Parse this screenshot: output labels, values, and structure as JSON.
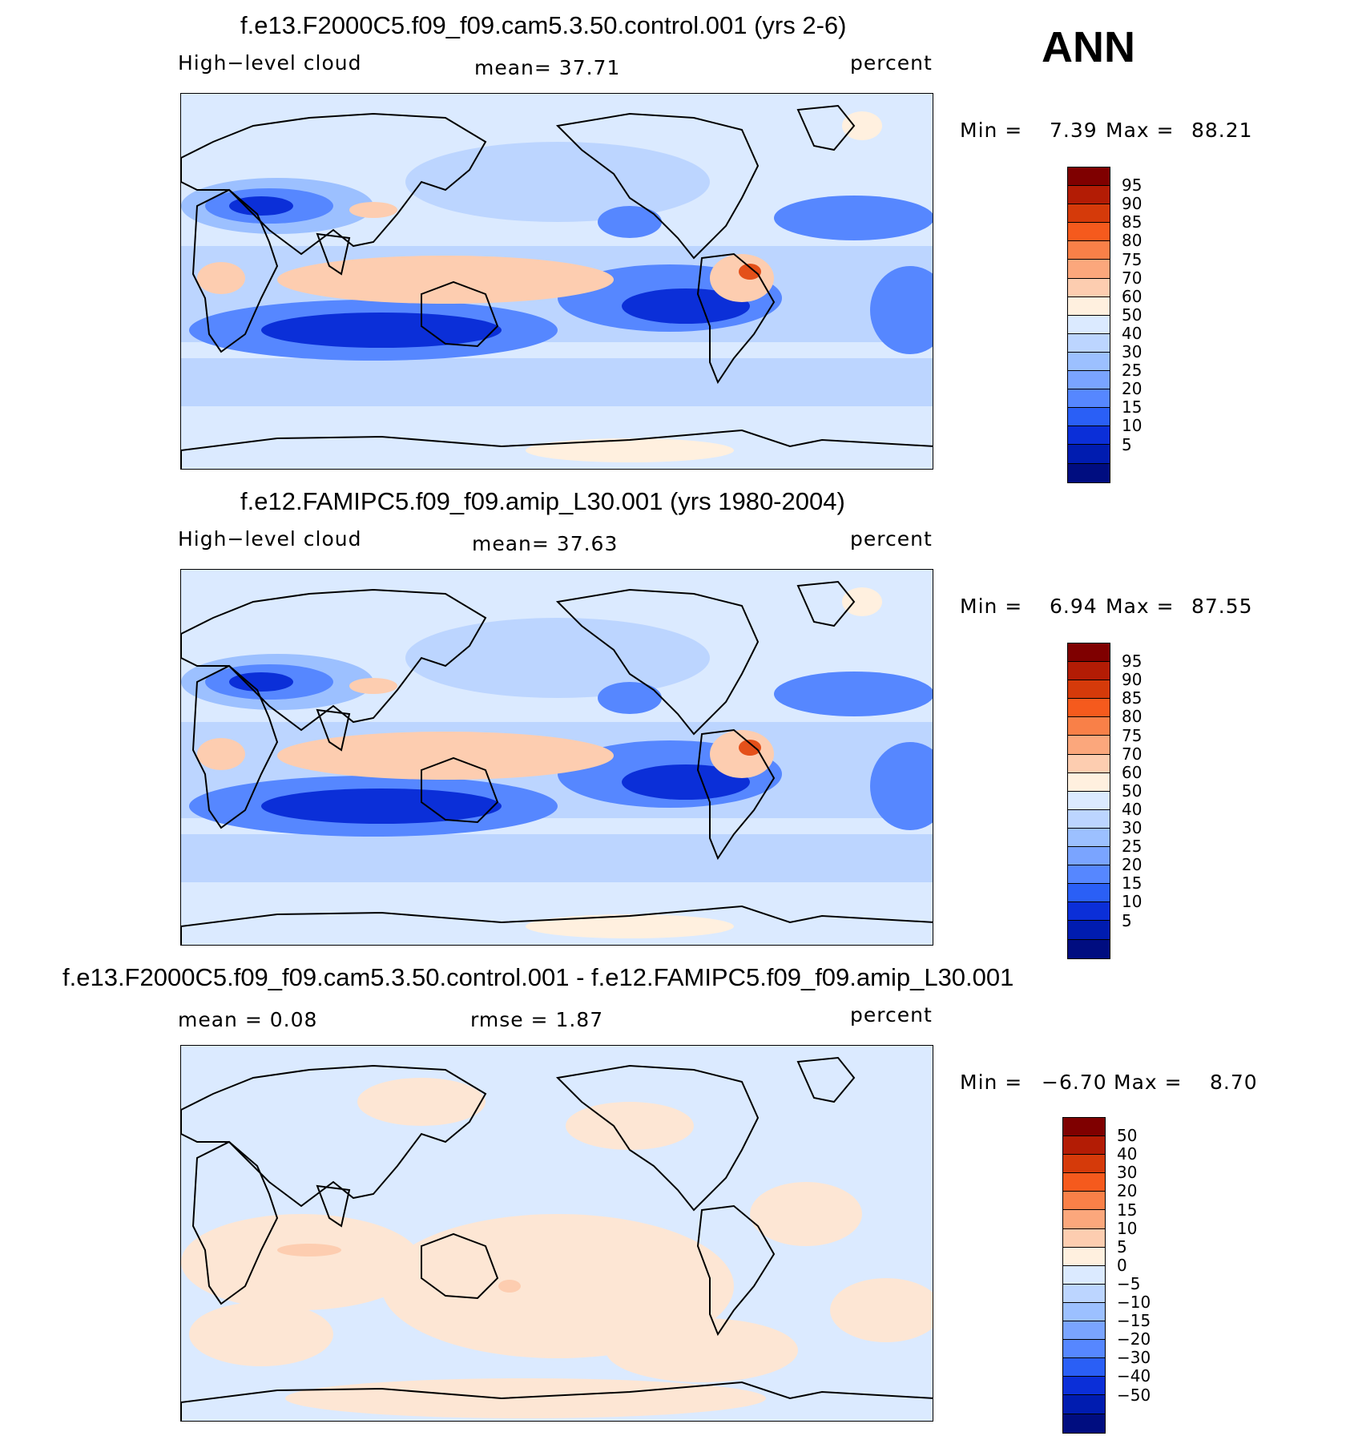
{
  "season": "ANN",
  "panels": [
    {
      "id": "top",
      "title": "f.e13.F2000C5.f09_f09.cam5.3.50.control.001 (yrs 2-6)",
      "left_label": "High−level cloud",
      "center_label": "mean=   37.71",
      "right_label": "percent",
      "stats": {
        "min_label": "Min =",
        "min": "7.39",
        "max_label": "Max =",
        "max": "88.21"
      },
      "colorbar": {
        "labels": [
          "95",
          "90",
          "85",
          "80",
          "75",
          "70",
          "60",
          "50",
          "40",
          "30",
          "25",
          "20",
          "15",
          "10",
          "5"
        ],
        "colors": [
          "#7f0000",
          "#b31c05",
          "#d53a0a",
          "#f55a1d",
          "#f98048",
          "#fba77c",
          "#fdcdb0",
          "#fff0df",
          "#dbeaff",
          "#bcd5ff",
          "#9cc0ff",
          "#7aa4ff",
          "#5687ff",
          "#2a5ff6",
          "#0b2fd8",
          "#001cb0",
          "#000d80"
        ]
      },
      "map_colors": {
        "background": "#dbeaff",
        "bands": "#bcd5ff",
        "mid": "#9cc0ff",
        "low": "#5687ff",
        "lowest": "#0b2fd8",
        "warm": "#fdcdb0",
        "warmest": "#e4501a",
        "pale": "#fff0df"
      }
    },
    {
      "id": "middle",
      "title": "f.e12.FAMIPC5.f09_f09.amip_L30.001 (yrs 1980-2004)",
      "left_label": "High−level cloud",
      "center_label": "mean=   37.63",
      "right_label": "percent",
      "stats": {
        "min_label": "Min =",
        "min": "6.94",
        "max_label": "Max =",
        "max": "87.55"
      },
      "colorbar": {
        "labels": [
          "95",
          "90",
          "85",
          "80",
          "75",
          "70",
          "60",
          "50",
          "40",
          "30",
          "25",
          "20",
          "15",
          "10",
          "5"
        ],
        "colors": [
          "#7f0000",
          "#b31c05",
          "#d53a0a",
          "#f55a1d",
          "#f98048",
          "#fba77c",
          "#fdcdb0",
          "#fff0df",
          "#dbeaff",
          "#bcd5ff",
          "#9cc0ff",
          "#7aa4ff",
          "#5687ff",
          "#2a5ff6",
          "#0b2fd8",
          "#001cb0",
          "#000d80"
        ]
      },
      "map_colors": {
        "background": "#dbeaff",
        "bands": "#bcd5ff",
        "mid": "#9cc0ff",
        "low": "#5687ff",
        "lowest": "#0b2fd8",
        "warm": "#fdcdb0",
        "warmest": "#e4501a",
        "pale": "#fff0df"
      }
    },
    {
      "id": "bottom",
      "title": "f.e13.F2000C5.f09_f09.cam5.3.50.control.001 - f.e12.FAMIPC5.f09_f09.amip_L30.001",
      "left_label": "mean =    0.08",
      "center_label": "rmse =    1.87",
      "right_label": "percent",
      "stats": {
        "min_label": "Min =",
        "min": "−6.70",
        "max_label": "Max =",
        "max": "8.70"
      },
      "colorbar": {
        "labels": [
          "50",
          "40",
          "30",
          "20",
          "15",
          "10",
          "5",
          "0",
          "−5",
          "−10",
          "−15",
          "−20",
          "−30",
          "−40",
          "−50"
        ],
        "colors": [
          "#7f0000",
          "#b31c05",
          "#d53a0a",
          "#f55a1d",
          "#f98048",
          "#fba77c",
          "#fdcdb0",
          "#fff0df",
          "#dbeaff",
          "#bcd5ff",
          "#9cc0ff",
          "#7aa4ff",
          "#5687ff",
          "#2a5ff6",
          "#0b2fd8",
          "#001cb0",
          "#000d80"
        ]
      },
      "map_colors": {
        "background": "#dbeaff",
        "pale": "#fde6d4",
        "warm": "#fdcdb0",
        "bands": "#c5dbff"
      }
    }
  ]
}
